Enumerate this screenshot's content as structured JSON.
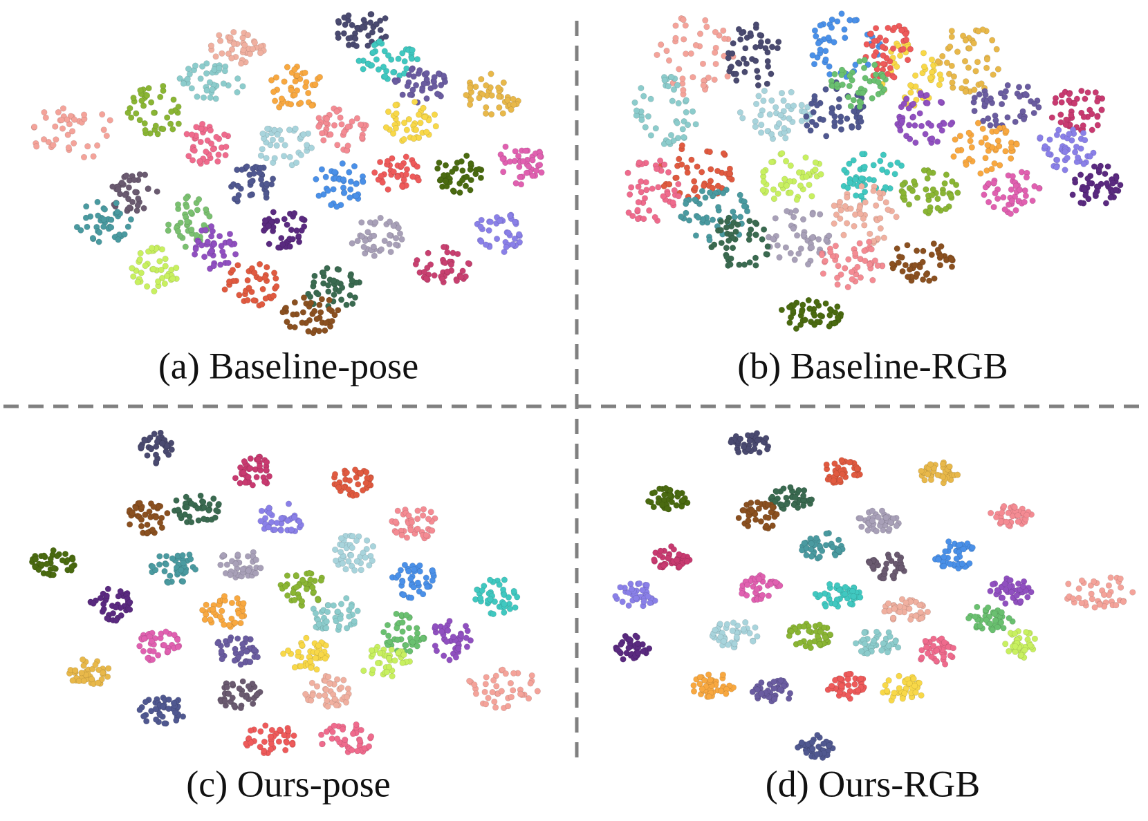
{
  "panels": [
    {
      "caption": "(a) Baseline-pose"
    },
    {
      "caption": "(b) Baseline-RGB"
    },
    {
      "caption": "(c) Ours-pose"
    },
    {
      "caption": "(d) Ours-RGB"
    }
  ]
}
